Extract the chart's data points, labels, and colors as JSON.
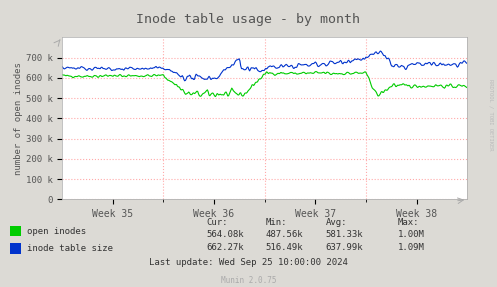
{
  "title": "Inode table usage - by month",
  "ylabel": "number of open inodes",
  "background_color": "#dcdad5",
  "plot_bg_color": "#ffffff",
  "grid_color": "#ffaaaa",
  "ylim": [
    0,
    800000
  ],
  "yticks": [
    0,
    100000,
    200000,
    300000,
    400000,
    500000,
    600000,
    700000
  ],
  "ytick_labels": [
    "0",
    "100 k",
    "200 k",
    "300 k",
    "400 k",
    "500 k",
    "600 k",
    "700 k"
  ],
  "xtick_labels": [
    "Week 35",
    "Week 36",
    "Week 37",
    "Week 38"
  ],
  "open_inodes_color": "#00cc00",
  "inode_table_color": "#0033cc",
  "legend_items": [
    "open inodes",
    "inode table size"
  ],
  "stats_header": [
    "Cur:",
    "Min:",
    "Avg:",
    "Max:"
  ],
  "stats_open": [
    "564.08k",
    "487.56k",
    "581.33k",
    "1.00M"
  ],
  "stats_inode": [
    "662.27k",
    "516.49k",
    "637.99k",
    "1.09M"
  ],
  "last_update": "Last update: Wed Sep 25 10:00:00 2024",
  "munin_label": "Munin 2.0.75",
  "rrdtool_label": "RRDTOOL / TOBI OETIKER"
}
